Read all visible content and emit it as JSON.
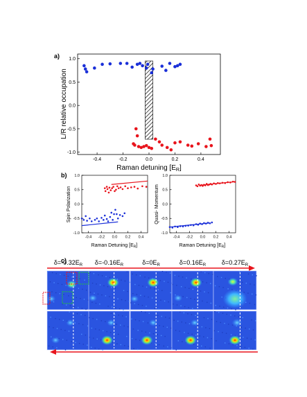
{
  "panels": {
    "a": {
      "label": "a)",
      "ylabel": "L/R relative occupation",
      "xlabel": "Raman detuning [E",
      "xlabel_sub": "R",
      "xlabel_end": "]",
      "xlim": [
        -0.55,
        0.55
      ],
      "ylim": [
        -1.05,
        1.1
      ],
      "xticks": [
        "-0.4",
        "-0.2",
        "0.0",
        "0.2",
        "0.4"
      ],
      "xtick_values": [
        -0.4,
        -0.2,
        0.0,
        0.2,
        0.4
      ],
      "yticks": [
        "1.0",
        "0.5",
        "0.0",
        "-0.5",
        "-1.0"
      ],
      "ytick_values": [
        1.0,
        0.5,
        0.0,
        -0.5,
        -1.0
      ],
      "hatched_region": [
        -0.03,
        0.03
      ],
      "series": [
        {
          "color": "#1a2fd8",
          "points": [
            [
              -0.5,
              0.85
            ],
            [
              -0.49,
              0.78
            ],
            [
              -0.48,
              0.72
            ],
            [
              -0.42,
              0.8
            ],
            [
              -0.36,
              0.88
            ],
            [
              -0.3,
              0.89
            ],
            [
              -0.22,
              0.9
            ],
            [
              -0.17,
              0.9
            ],
            [
              -0.13,
              0.82
            ],
            [
              -0.09,
              0.88
            ],
            [
              -0.07,
              0.9
            ],
            [
              -0.05,
              0.85
            ],
            [
              -0.02,
              0.8
            ],
            [
              -0.01,
              0.88
            ],
            [
              0.02,
              0.7
            ],
            [
              0.03,
              0.78
            ],
            [
              0.1,
              0.84
            ],
            [
              0.13,
              0.75
            ],
            [
              0.16,
              0.9
            ],
            [
              0.2,
              0.83
            ],
            [
              0.22,
              0.85
            ],
            [
              0.24,
              0.88
            ]
          ]
        },
        {
          "color": "#e8141c",
          "points": [
            [
              -0.1,
              -0.5
            ],
            [
              -0.09,
              -0.65
            ],
            [
              -0.12,
              -0.82
            ],
            [
              -0.11,
              -0.85
            ],
            [
              -0.08,
              -0.88
            ],
            [
              -0.06,
              -0.9
            ],
            [
              -0.04,
              -0.88
            ],
            [
              -0.02,
              -0.86
            ],
            [
              0.0,
              -0.9
            ],
            [
              0.02,
              -0.92
            ],
            [
              0.05,
              -0.72
            ],
            [
              0.08,
              -0.78
            ],
            [
              0.1,
              -0.85
            ],
            [
              0.14,
              -0.9
            ],
            [
              0.17,
              -0.95
            ],
            [
              0.2,
              -0.8
            ],
            [
              0.24,
              -0.78
            ],
            [
              0.3,
              -0.85
            ],
            [
              0.33,
              -0.87
            ],
            [
              0.38,
              -0.82
            ],
            [
              0.44,
              -0.88
            ],
            [
              0.47,
              -0.72
            ],
            [
              0.48,
              -0.86
            ]
          ]
        }
      ]
    },
    "b_left": {
      "label": "b)",
      "ylabel": "Spin Polarization",
      "xlabel": "Raman Detuning [E",
      "xlabel_sub": "R",
      "xlabel_end": "]",
      "xlim": [
        -0.5,
        0.5
      ],
      "ylim": [
        -1.0,
        1.0
      ],
      "xticks": [
        "-0.4",
        "-0.2",
        "0.0",
        "0.2",
        "0.4"
      ],
      "xtick_values": [
        -0.4,
        -0.2,
        0.0,
        0.2,
        0.4
      ],
      "yticks": [
        "1.0",
        "0.5",
        "0.0",
        "-0.5",
        "-1.0"
      ],
      "ytick_values": [
        1.0,
        0.5,
        0.0,
        -0.5,
        -1.0
      ],
      "series": [
        {
          "color": "#e8141c",
          "points": [
            [
              -0.15,
              0.55
            ],
            [
              -0.14,
              0.45
            ],
            [
              -0.12,
              0.6
            ],
            [
              -0.11,
              0.52
            ],
            [
              -0.09,
              0.4
            ],
            [
              -0.08,
              0.57
            ],
            [
              -0.06,
              0.48
            ],
            [
              -0.04,
              0.55
            ],
            [
              -0.02,
              0.6
            ],
            [
              0.0,
              0.45
            ],
            [
              0.02,
              0.5
            ],
            [
              0.04,
              0.62
            ],
            [
              0.06,
              0.55
            ],
            [
              0.09,
              0.58
            ],
            [
              0.12,
              0.52
            ],
            [
              0.16,
              0.62
            ],
            [
              0.2,
              0.55
            ],
            [
              0.25,
              0.58
            ],
            [
              0.3,
              0.6
            ],
            [
              0.35,
              0.54
            ],
            [
              0.42,
              0.62
            ],
            [
              0.48,
              0.6
            ]
          ]
        },
        {
          "color": "#1a2fd8",
          "points": [
            [
              -0.5,
              -0.5
            ],
            [
              -0.47,
              -0.55
            ],
            [
              -0.44,
              -0.42
            ],
            [
              -0.42,
              -0.58
            ],
            [
              -0.38,
              -0.5
            ],
            [
              -0.35,
              -0.6
            ],
            [
              -0.3,
              -0.55
            ],
            [
              -0.27,
              -0.5
            ],
            [
              -0.24,
              -0.6
            ],
            [
              -0.2,
              -0.48
            ],
            [
              -0.17,
              -0.55
            ],
            [
              -0.15,
              -0.4
            ],
            [
              -0.12,
              -0.52
            ],
            [
              -0.1,
              -0.6
            ],
            [
              -0.07,
              -0.45
            ],
            [
              -0.05,
              -0.3
            ],
            [
              -0.03,
              -0.55
            ],
            [
              -0.01,
              -0.35
            ],
            [
              0.01,
              -0.2
            ],
            [
              0.03,
              -0.35
            ],
            [
              0.05,
              -0.5
            ],
            [
              0.08,
              -0.38
            ],
            [
              0.12,
              -0.42
            ],
            [
              0.15,
              -0.32
            ]
          ]
        }
      ],
      "lines": [
        {
          "color": "#e8141c",
          "from": [
            -0.05,
            0.68
          ],
          "to": [
            0.5,
            0.8
          ]
        },
        {
          "color": "#1a2fd8",
          "from": [
            -0.5,
            -0.75
          ],
          "to": [
            0.05,
            -0.62
          ]
        }
      ]
    },
    "b_right": {
      "ylabel": "Quasi- Momentum",
      "xlabel": "Raman Detuning [E",
      "xlabel_sub": "R",
      "xlabel_end": "]",
      "xlim": [
        -0.5,
        0.5
      ],
      "ylim": [
        -1.0,
        1.0
      ],
      "xticks": [
        "-0.4",
        "-0.2",
        "0.0",
        "0.2",
        "0.4"
      ],
      "xtick_values": [
        -0.4,
        -0.2,
        0.0,
        0.2,
        0.4
      ],
      "yticks": [
        "1.0",
        "0.5",
        "0.0",
        "-0.5",
        "-1.0"
      ],
      "ytick_values": [
        1.0,
        0.5,
        0.0,
        -0.5,
        -1.0
      ],
      "series": [
        {
          "color": "#e8141c",
          "points": [
            [
              -0.1,
              0.65
            ],
            [
              -0.08,
              0.62
            ],
            [
              -0.06,
              0.68
            ],
            [
              -0.04,
              0.64
            ],
            [
              -0.02,
              0.66
            ],
            [
              0.0,
              0.63
            ],
            [
              0.02,
              0.67
            ],
            [
              0.04,
              0.65
            ],
            [
              0.06,
              0.7
            ],
            [
              0.08,
              0.66
            ],
            [
              0.1,
              0.68
            ],
            [
              0.12,
              0.7
            ],
            [
              0.14,
              0.68
            ],
            [
              0.17,
              0.72
            ],
            [
              0.2,
              0.7
            ],
            [
              0.23,
              0.73
            ],
            [
              0.26,
              0.72
            ],
            [
              0.3,
              0.74
            ],
            [
              0.34,
              0.73
            ],
            [
              0.38,
              0.76
            ],
            [
              0.42,
              0.75
            ],
            [
              0.46,
              0.78
            ],
            [
              0.49,
              0.77
            ]
          ]
        },
        {
          "color": "#1a2fd8",
          "points": [
            [
              -0.5,
              -0.8
            ],
            [
              -0.46,
              -0.82
            ],
            [
              -0.42,
              -0.78
            ],
            [
              -0.38,
              -0.8
            ],
            [
              -0.34,
              -0.77
            ],
            [
              -0.3,
              -0.78
            ],
            [
              -0.26,
              -0.76
            ],
            [
              -0.22,
              -0.75
            ],
            [
              -0.18,
              -0.73
            ],
            [
              -0.14,
              -0.74
            ],
            [
              -0.1,
              -0.7
            ],
            [
              -0.07,
              -0.72
            ],
            [
              -0.04,
              -0.68
            ],
            [
              -0.01,
              -0.7
            ],
            [
              0.02,
              -0.66
            ],
            [
              0.05,
              -0.68
            ],
            [
              0.08,
              -0.65
            ],
            [
              0.11,
              -0.67
            ],
            [
              0.14,
              -0.64
            ]
          ]
        }
      ],
      "lines": [
        {
          "color": "#e8141c",
          "from": [
            -0.05,
            0.65
          ],
          "to": [
            0.5,
            0.78
          ]
        },
        {
          "color": "#1a2fd8",
          "from": [
            -0.5,
            -0.8
          ],
          "to": [
            0.1,
            -0.66
          ]
        }
      ]
    },
    "c": {
      "label": "c)",
      "columns": [
        {
          "prefix": "δ=",
          "value": "-0.32E",
          "sub": "R"
        },
        {
          "prefix": "δ=",
          "value": "-0.16E",
          "sub": "R"
        },
        {
          "prefix": "δ=",
          "value": "0E",
          "sub": "R"
        },
        {
          "prefix": "δ=",
          "value": "0.16E",
          "sub": "R"
        },
        {
          "prefix": "δ=",
          "value": "0.27E",
          "sub": "R"
        }
      ]
    }
  }
}
